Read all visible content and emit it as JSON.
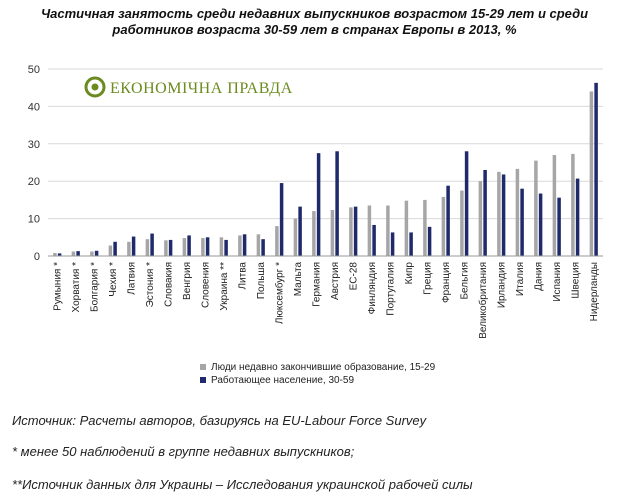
{
  "title_line1": "Частичная занятость среди недавних выпускников возрастом 15-29 лет и среди",
  "title_line2": "работников возраста 30-59 лет в странах Европы в 2013, %",
  "logo": {
    "text": "ЕКОНОМІЧНА ПРАВДА",
    "icon": "ep-logo-icon"
  },
  "colors": {
    "series1": "#a6a6a6",
    "series2": "#1f2a6b",
    "grid": "#d9d9d9",
    "axis": "#999999"
  },
  "chart_data": {
    "type": "bar",
    "ylim": [
      0,
      50
    ],
    "yticks": [
      0,
      10,
      20,
      30,
      40,
      50
    ],
    "grid": true,
    "legend_position": "bottom",
    "categories": [
      "Румыния *",
      "Хорватия *",
      "Болгария *",
      "Чехия *",
      "Латвия",
      "Эстония *",
      "Словакия",
      "Венгрия",
      "Словения",
      "Украина **",
      "Литва",
      "Польша",
      "Люксембург *",
      "Мальта",
      "Германия",
      "Австрия",
      "ЕС-28",
      "Финляндия",
      "Португалия",
      "Кипр",
      "Греция",
      "Франция",
      "Бельгия",
      "Великобритания",
      "Ирландия",
      "Италия",
      "Дания",
      "Испания",
      "Швеция",
      "Нидерланды"
    ],
    "series": [
      {
        "name": "Люди недавно закончившие образование, 15-29",
        "values": [
          0.8,
          1.2,
          1.2,
          2.8,
          3.8,
          4.5,
          4.2,
          4.8,
          4.8,
          5.0,
          5.5,
          5.8,
          8.0,
          10.0,
          12.0,
          12.3,
          13.0,
          13.5,
          13.5,
          14.8,
          15.0,
          15.8,
          17.5,
          20.0,
          22.5,
          23.3,
          25.5,
          27.0,
          27.3,
          44.0
        ]
      },
      {
        "name": "Работающее население, 30-59",
        "values": [
          0.7,
          1.3,
          1.4,
          3.8,
          5.2,
          6.0,
          4.3,
          5.5,
          5.0,
          4.3,
          5.8,
          4.5,
          19.5,
          13.2,
          27.5,
          28.0,
          13.2,
          8.3,
          6.3,
          6.3,
          7.8,
          18.8,
          28.0,
          23.0,
          21.8,
          18.0,
          16.7,
          15.6,
          20.7,
          46.3
        ]
      }
    ]
  },
  "notes": {
    "source": "Источник: Расчеты авторов, базируясь на EU-Labour Force Survey",
    "note1": "* менее 50 наблюдений в группе недавних выпускников;",
    "note2": "**Источник данных для Украины – Исследования украинской рабочей силы"
  }
}
